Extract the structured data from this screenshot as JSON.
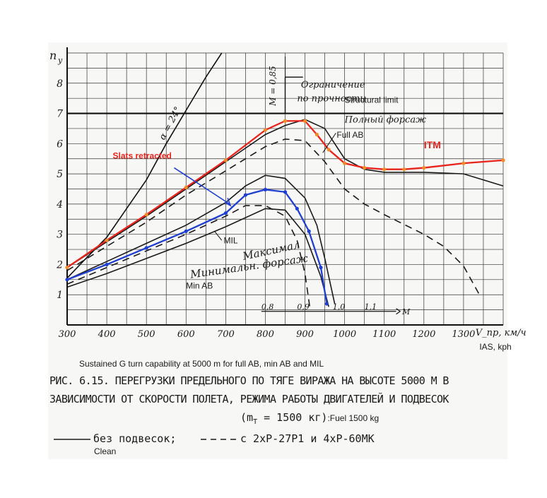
{
  "chart_data": {
    "type": "line",
    "ylabel": "n_y",
    "xlabel": "V_пр, км/ч",
    "xlabel_en": "IAS, kph",
    "xlim": [
      300,
      1400
    ],
    "ylim": [
      0,
      9
    ],
    "x_ticks": [
      300,
      400,
      500,
      600,
      700,
      800,
      900,
      1000,
      1100,
      1200,
      1300
    ],
    "y_ticks": [
      1,
      2,
      3,
      4,
      5,
      6,
      7,
      8
    ],
    "x_tick_labels": [
      "300",
      "400",
      "500",
      "600",
      "700",
      "800",
      "900",
      "1000",
      "1100",
      "1200",
      "1300"
    ],
    "y_tick_labels": [
      "1",
      "2",
      "3",
      "4",
      "5",
      "6",
      "7",
      "8"
    ],
    "grid": true,
    "mach_scale": {
      "labels": [
        "0,8",
        "0,9",
        "1,0",
        "1,1"
      ],
      "unit": "M"
    },
    "annotations": {
      "structural_ru_1": "Ограничение",
      "structural_ru_2": "по прочности",
      "structural_en": "Structural limit",
      "full_ab_ru": "Полный форсаж",
      "full_ab_en": "Full AB",
      "itm": "ITM",
      "slats": "Slats retracted",
      "mil_en": "MIL",
      "max_ru": "Максимал",
      "min_ab_ru": "Минимальн. форсаж",
      "min_ab_en": "Min AB",
      "alpha": "α = 24°",
      "mach": "M = 0,85"
    },
    "series": [
      {
        "name": "Полный форсаж",
        "style": "solid",
        "color": "#1a1a1a",
        "x": [
          300,
          400,
          500,
          600,
          700,
          800,
          850,
          900,
          950,
          1000,
          1050,
          1100,
          1200,
          1300,
          1400
        ],
        "y": [
          1.9,
          2.75,
          3.6,
          4.5,
          5.4,
          6.3,
          6.6,
          6.8,
          6.5,
          5.5,
          5.15,
          5.05,
          5.05,
          5.0,
          4.6
        ]
      },
      {
        "name": "Полный форсаж, 2xP-27P1 и 4xP-60МК",
        "style": "dashed",
        "color": "#1a1a1a",
        "x": [
          300,
          400,
          500,
          600,
          700,
          800,
          850,
          900,
          950,
          1000,
          1050,
          1100,
          1200,
          1250,
          1300,
          1340
        ],
        "y": [
          1.8,
          2.6,
          3.4,
          4.3,
          5.1,
          5.9,
          6.15,
          6.1,
          5.4,
          4.5,
          4.0,
          3.65,
          3.0,
          2.6,
          1.95,
          1.0
        ]
      },
      {
        "name": "Максимал",
        "style": "solid",
        "color": "#1a1a1a",
        "x": [
          300,
          400,
          500,
          600,
          700,
          750,
          800,
          850,
          900,
          930,
          950,
          975
        ],
        "y": [
          1.5,
          2.1,
          2.7,
          3.3,
          4.05,
          4.6,
          4.95,
          4.85,
          4.2,
          3.3,
          2.2,
          0.7
        ]
      },
      {
        "name": "Максимал, 2xP-27P1 и 4xP-60МК",
        "style": "dashed",
        "color": "#1a1a1a",
        "x": [
          300,
          400,
          500,
          600,
          700,
          750,
          800,
          850,
          880,
          900,
          912
        ],
        "y": [
          1.35,
          1.9,
          2.45,
          3.0,
          3.6,
          3.95,
          3.95,
          3.6,
          2.8,
          1.7,
          0.6
        ]
      },
      {
        "name": "Минимальн. форсаж",
        "style": "solid",
        "color": "#1a1a1a",
        "x": [
          300,
          400,
          500,
          600,
          700,
          800,
          850,
          900,
          940,
          960
        ],
        "y": [
          1.25,
          1.7,
          2.2,
          2.7,
          3.25,
          3.85,
          3.8,
          3.0,
          1.6,
          0.6
        ]
      },
      {
        "name": "ITM",
        "style": "solid",
        "color": "#e8241c",
        "x": [
          300,
          400,
          500,
          600,
          700,
          800,
          850,
          900,
          930,
          960,
          1000,
          1050,
          1100,
          1150,
          1200,
          1300,
          1400
        ],
        "y": [
          1.9,
          2.8,
          3.65,
          4.55,
          5.45,
          6.45,
          6.75,
          6.75,
          6.3,
          5.8,
          5.35,
          5.2,
          5.15,
          5.15,
          5.2,
          5.35,
          5.45
        ]
      },
      {
        "name": "Slats retracted",
        "style": "solid",
        "color": "#1f3fd0",
        "x": [
          300,
          400,
          500,
          600,
          700,
          750,
          800,
          850,
          880,
          910,
          940,
          955
        ],
        "y": [
          1.5,
          2.0,
          2.55,
          3.1,
          3.7,
          4.3,
          4.48,
          4.4,
          3.85,
          3.1,
          1.9,
          0.7
        ]
      }
    ]
  },
  "texts": {
    "caption_en": "Sustained G turn capability at 5000 m for full AB, min AB and MIL",
    "caption_ru_1": "РИС. 6.15. ПЕРЕГРУЗКИ ПРЕДЕЛЬНОГО ПО ТЯГЕ ВИРАЖА НА ВЫСОТЕ 5000 М В",
    "caption_ru_2": "ЗАВИСИМОСТИ ОТ СКОРОСТИ ПОЛЕТА, РЕЖИМА РАБОТЫ ДВИГАТЕЛЕЙ И ПОДВЕСОК",
    "fuel_ru": "(m",
    "fuel_sub": "T",
    "fuel_val": "= 1500 кг)",
    "fuel_en": ":Fuel 1500 kg",
    "legend_clean_ru": "без подвесок;",
    "legend_clean_en": "Clean",
    "legend_dash_ru": "с 2xP-27P1 и 4xP-60МК"
  },
  "colors": {
    "red": "#e8241c",
    "blue": "#1f3fd0",
    "orange": "#f28c28",
    "ink": "#1a1a1a"
  }
}
